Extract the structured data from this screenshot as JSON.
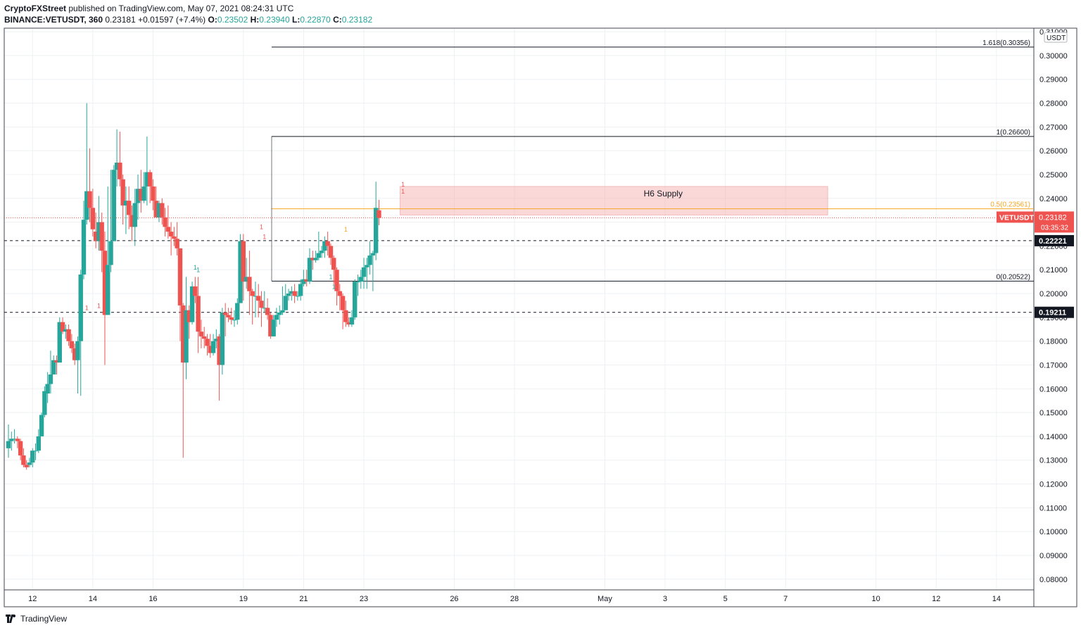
{
  "header": {
    "publisher": "CryptoFXStreet",
    "published_text": "published on TradingView.com, May 07, 2021 08:24:31 UTC",
    "symbol": "BINANCE:VETUSDT, 360",
    "last": "0.23181",
    "change": "+0.01597 (+7.4%)",
    "o_label": "O:",
    "o_value": "0.23502",
    "h_label": "H:",
    "h_value": "0.23940",
    "l_label": "L:",
    "l_value": "0.22870",
    "c_label": "C:",
    "c_value": "0.23182"
  },
  "footer": {
    "brand": "TradingView"
  },
  "colors": {
    "up": "#26a69a",
    "down": "#ef5350",
    "zone": "#f7a9a9",
    "fib_half": "#f5a623",
    "grid": "#eef0f3"
  },
  "chart_data": {
    "type": "candlestick",
    "currency": "USDT",
    "ylim": [
      0.0755,
      0.3115
    ],
    "y_ticks": [
      "0.08000",
      "0.09000",
      "0.10000",
      "0.11000",
      "0.12000",
      "0.13000",
      "0.14000",
      "0.15000",
      "0.16000",
      "0.17000",
      "0.18000",
      "0.19000",
      "0.20000",
      "0.21000",
      "0.22000",
      "0.23000",
      "0.24000",
      "0.25000",
      "0.26000",
      "0.27000",
      "0.28000",
      "0.29000",
      "0.30000",
      "0.31000"
    ],
    "x_ticks": [
      {
        "label": "12",
        "i": 8
      },
      {
        "label": "14",
        "i": 28
      },
      {
        "label": "16",
        "i": 48
      },
      {
        "label": "19",
        "i": 78
      },
      {
        "label": "21",
        "i": 98
      },
      {
        "label": "23",
        "i": 118
      },
      {
        "label": "26",
        "i": 148
      },
      {
        "label": "28",
        "i": 168
      },
      {
        "label": "May",
        "i": 198
      },
      {
        "label": "3",
        "i": 218
      },
      {
        "label": "5",
        "i": 238
      },
      {
        "label": "7",
        "i": 258
      },
      {
        "label": "10",
        "i": 288
      },
      {
        "label": "12",
        "i": 308
      },
      {
        "label": "14",
        "i": 328
      }
    ],
    "candles": [
      [
        0.135,
        0.138,
        0.131,
        0.145
      ],
      [
        0.138,
        0.139,
        0.134,
        0.142
      ],
      [
        0.139,
        0.139,
        0.137,
        0.143
      ],
      [
        0.139,
        0.138,
        0.135,
        0.14
      ],
      [
        0.138,
        0.132,
        0.13,
        0.139
      ],
      [
        0.132,
        0.128,
        0.127,
        0.135
      ],
      [
        0.128,
        0.127,
        0.126,
        0.13
      ],
      [
        0.128,
        0.129,
        0.127,
        0.131
      ],
      [
        0.129,
        0.134,
        0.127,
        0.135
      ],
      [
        0.134,
        0.134,
        0.13,
        0.137
      ],
      [
        0.134,
        0.14,
        0.133,
        0.143
      ],
      [
        0.14,
        0.149,
        0.14,
        0.15
      ],
      [
        0.149,
        0.159,
        0.148,
        0.161
      ],
      [
        0.158,
        0.162,
        0.154,
        0.167
      ],
      [
        0.162,
        0.166,
        0.158,
        0.176
      ],
      [
        0.166,
        0.172,
        0.166,
        0.174
      ],
      [
        0.172,
        0.171,
        0.166,
        0.174
      ],
      [
        0.171,
        0.188,
        0.171,
        0.19
      ],
      [
        0.188,
        0.184,
        0.183,
        0.19
      ],
      [
        0.184,
        0.185,
        0.181,
        0.187
      ],
      [
        0.185,
        0.18,
        0.178,
        0.187
      ],
      [
        0.18,
        0.177,
        0.175,
        0.183
      ],
      [
        0.177,
        0.172,
        0.17,
        0.179
      ],
      [
        0.172,
        0.18,
        0.158,
        0.182
      ],
      [
        0.18,
        0.208,
        0.157,
        0.21
      ],
      [
        0.208,
        0.231,
        0.206,
        0.239
      ],
      [
        0.231,
        0.243,
        0.229,
        0.28
      ],
      [
        0.243,
        0.236,
        0.23,
        0.261
      ],
      [
        0.236,
        0.227,
        0.224,
        0.244
      ],
      [
        0.226,
        0.222,
        0.219,
        0.234
      ],
      [
        0.222,
        0.23,
        0.218,
        0.241
      ],
      [
        0.23,
        0.218,
        0.209,
        0.234
      ],
      [
        0.218,
        0.191,
        0.17,
        0.226
      ],
      [
        0.191,
        0.212,
        0.191,
        0.245
      ],
      [
        0.212,
        0.222,
        0.209,
        0.252
      ],
      [
        0.222,
        0.252,
        0.222,
        0.254
      ],
      [
        0.252,
        0.255,
        0.245,
        0.269
      ],
      [
        0.255,
        0.248,
        0.245,
        0.268
      ],
      [
        0.248,
        0.237,
        0.229,
        0.25
      ],
      [
        0.237,
        0.239,
        0.225,
        0.245
      ],
      [
        0.239,
        0.233,
        0.227,
        0.245
      ],
      [
        0.233,
        0.228,
        0.222,
        0.237
      ],
      [
        0.228,
        0.238,
        0.22,
        0.244
      ],
      [
        0.238,
        0.244,
        0.231,
        0.25
      ],
      [
        0.244,
        0.239,
        0.234,
        0.252
      ],
      [
        0.239,
        0.245,
        0.238,
        0.251
      ],
      [
        0.245,
        0.251,
        0.237,
        0.266
      ],
      [
        0.251,
        0.245,
        0.238,
        0.252
      ],
      [
        0.245,
        0.239,
        0.235,
        0.248
      ],
      [
        0.239,
        0.232,
        0.233,
        0.245
      ],
      [
        0.232,
        0.238,
        0.23,
        0.239
      ],
      [
        0.238,
        0.232,
        0.229,
        0.24
      ],
      [
        0.232,
        0.228,
        0.224,
        0.236
      ],
      [
        0.228,
        0.226,
        0.223,
        0.237
      ],
      [
        0.226,
        0.224,
        0.216,
        0.23
      ],
      [
        0.224,
        0.223,
        0.22,
        0.228
      ],
      [
        0.223,
        0.219,
        0.216,
        0.23
      ],
      [
        0.219,
        0.195,
        0.18,
        0.219
      ],
      [
        0.195,
        0.171,
        0.131,
        0.196
      ],
      [
        0.171,
        0.193,
        0.164,
        0.207
      ],
      [
        0.193,
        0.188,
        0.181,
        0.195
      ],
      [
        0.188,
        0.203,
        0.187,
        0.205
      ],
      [
        0.203,
        0.199,
        0.196,
        0.207
      ],
      [
        0.199,
        0.184,
        0.175,
        0.207
      ],
      [
        0.184,
        0.182,
        0.177,
        0.189
      ],
      [
        0.182,
        0.181,
        0.177,
        0.186
      ],
      [
        0.181,
        0.178,
        0.174,
        0.183
      ],
      [
        0.178,
        0.175,
        0.173,
        0.183
      ],
      [
        0.175,
        0.18,
        0.174,
        0.183
      ],
      [
        0.18,
        0.181,
        0.177,
        0.185
      ],
      [
        0.182,
        0.17,
        0.155,
        0.183
      ],
      [
        0.17,
        0.192,
        0.166,
        0.194
      ],
      [
        0.192,
        0.191,
        0.182,
        0.196
      ],
      [
        0.191,
        0.19,
        0.188,
        0.194
      ],
      [
        0.19,
        0.189,
        0.187,
        0.194
      ],
      [
        0.189,
        0.189,
        0.186,
        0.193
      ],
      [
        0.189,
        0.196,
        0.187,
        0.198
      ],
      [
        0.196,
        0.222,
        0.196,
        0.225
      ],
      [
        0.222,
        0.205,
        0.197,
        0.225
      ],
      [
        0.205,
        0.207,
        0.202,
        0.215
      ],
      [
        0.207,
        0.201,
        0.191,
        0.218
      ],
      [
        0.201,
        0.199,
        0.187,
        0.202
      ],
      [
        0.199,
        0.199,
        0.19,
        0.205
      ],
      [
        0.199,
        0.197,
        0.19,
        0.204
      ],
      [
        0.197,
        0.194,
        0.186,
        0.201
      ],
      [
        0.194,
        0.194,
        0.192,
        0.201
      ],
      [
        0.194,
        0.191,
        0.189,
        0.198
      ],
      [
        0.191,
        0.182,
        0.181,
        0.192
      ],
      [
        0.182,
        0.189,
        0.182,
        0.191
      ],
      [
        0.189,
        0.191,
        0.186,
        0.194
      ],
      [
        0.191,
        0.192,
        0.187,
        0.195
      ],
      [
        0.192,
        0.193,
        0.191,
        0.203
      ],
      [
        0.193,
        0.199,
        0.193,
        0.204
      ],
      [
        0.199,
        0.2,
        0.197,
        0.202
      ],
      [
        0.2,
        0.201,
        0.197,
        0.203
      ],
      [
        0.201,
        0.199,
        0.196,
        0.204
      ],
      [
        0.199,
        0.199,
        0.197,
        0.201
      ],
      [
        0.199,
        0.204,
        0.197,
        0.206
      ],
      [
        0.204,
        0.206,
        0.203,
        0.21
      ],
      [
        0.206,
        0.205,
        0.203,
        0.21
      ],
      [
        0.205,
        0.215,
        0.204,
        0.219
      ],
      [
        0.215,
        0.214,
        0.21,
        0.218
      ],
      [
        0.214,
        0.215,
        0.213,
        0.218
      ],
      [
        0.215,
        0.217,
        0.214,
        0.226
      ],
      [
        0.217,
        0.218,
        0.215,
        0.22
      ],
      [
        0.218,
        0.222,
        0.215,
        0.224
      ],
      [
        0.222,
        0.22,
        0.216,
        0.226
      ],
      [
        0.22,
        0.215,
        0.212,
        0.221
      ],
      [
        0.215,
        0.21,
        0.204,
        0.216
      ],
      [
        0.21,
        0.201,
        0.195,
        0.211
      ],
      [
        0.201,
        0.199,
        0.193,
        0.204
      ],
      [
        0.199,
        0.193,
        0.185,
        0.2
      ],
      [
        0.193,
        0.188,
        0.186,
        0.197
      ],
      [
        0.188,
        0.187,
        0.186,
        0.19
      ],
      [
        0.187,
        0.19,
        0.186,
        0.193
      ],
      [
        0.19,
        0.205,
        0.189,
        0.206
      ],
      [
        0.205,
        0.205,
        0.199,
        0.208
      ],
      [
        0.205,
        0.207,
        0.202,
        0.21
      ],
      [
        0.207,
        0.211,
        0.202,
        0.215
      ],
      [
        0.211,
        0.212,
        0.202,
        0.215
      ],
      [
        0.212,
        0.216,
        0.208,
        0.222
      ],
      [
        0.216,
        0.217,
        0.201,
        0.218
      ],
      [
        0.217,
        0.236,
        0.214,
        0.247
      ],
      [
        0.235,
        0.2318,
        0.2287,
        0.2394
      ]
    ],
    "supply_zone": {
      "label": "H6 Supply",
      "top": 0.245,
      "bottom": 0.233,
      "from_i": 130,
      "to_i": 272
    },
    "fib_lines": [
      {
        "label": "1.618(0.30356)",
        "value": 0.30356
      },
      {
        "label": "1(0.26600)",
        "value": 0.266
      },
      {
        "label": "0.5(0.23561)",
        "value": 0.23561
      },
      {
        "label": "0(0.20522)",
        "value": 0.20522
      }
    ],
    "horizontal_levels": [
      {
        "label": "0.22221",
        "value": 0.22221
      },
      {
        "label": "0.19211",
        "value": 0.19211
      }
    ],
    "last_price": {
      "symbol": "VETUSDT",
      "value": 0.23182,
      "price_text": "0.23182",
      "countdown": "03:35:32"
    },
    "td_markers": [
      {
        "label": "1",
        "i": 26,
        "value": 0.193,
        "color": "#ef5350"
      },
      {
        "label": "1",
        "i": 30,
        "value": 0.194,
        "color": "#ef5350"
      },
      {
        "label": "1",
        "i": 62,
        "value": 0.21,
        "color": "#26a69a"
      },
      {
        "label": "1",
        "i": 63,
        "value": 0.209,
        "color": "#26a69a"
      },
      {
        "label": "1",
        "i": 84,
        "value": 0.227,
        "color": "#ef5350"
      },
      {
        "label": "1",
        "i": 85,
        "value": 0.223,
        "color": "#ef5350"
      },
      {
        "label": "1",
        "i": 107,
        "value": 0.206,
        "color": "#26a69a"
      },
      {
        "label": "1",
        "i": 108,
        "value": 0.202,
        "color": "#26a69a"
      },
      {
        "label": "1",
        "i": 112,
        "value": 0.226,
        "color": "#f5a623"
      },
      {
        "label": "1",
        "i": 131,
        "value": 0.245,
        "color": "#ef5350"
      },
      {
        "label": "1",
        "i": 131,
        "value": 0.242,
        "color": "#ef5350"
      }
    ]
  }
}
